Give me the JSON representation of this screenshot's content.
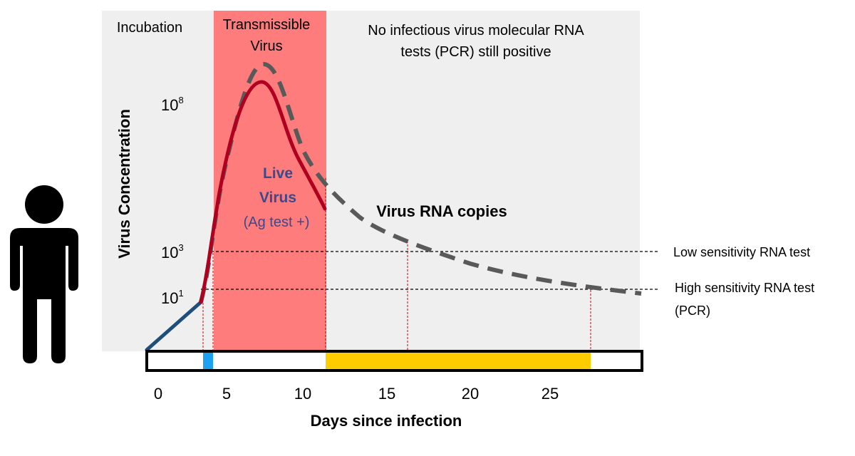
{
  "labels": {
    "incubation": "Incubation",
    "transmissible_line1": "Transmissible",
    "transmissible_line2": "Virus",
    "noninfectious_line1": "No infectious virus molecular RNA",
    "noninfectious_line2": "tests (PCR) still positive",
    "y_axis": "Virus Concentration",
    "x_axis": "Days since infection",
    "live_line1": "Live",
    "live_line2": "Virus",
    "live_line3": "(Ag test +)",
    "rna_copies": "Virus RNA copies",
    "low_sens": "Low sensitivity RNA test",
    "high_sens_line1": "High sensitivity RNA test",
    "high_sens_line2": "(PCR)"
  },
  "y_ticks": [
    {
      "base": "10",
      "exp": "8"
    },
    {
      "base": "10",
      "exp": "3"
    },
    {
      "base": "10",
      "exp": "1"
    }
  ],
  "x_ticks": [
    "0",
    "5",
    "10",
    "15",
    "20",
    "25"
  ],
  "colors": {
    "background_panel": "#efefef",
    "transmissible_band": "#ff7c7c",
    "live_virus_curve": "#b00020",
    "rna_curve": "#595959",
    "incubation_line": "#1f4e79",
    "live_text": "#3a4a8c",
    "timeline_blue": "#1da1f2",
    "timeline_yellow": "#ffcc00",
    "threshold_red": "#d40000"
  }
}
